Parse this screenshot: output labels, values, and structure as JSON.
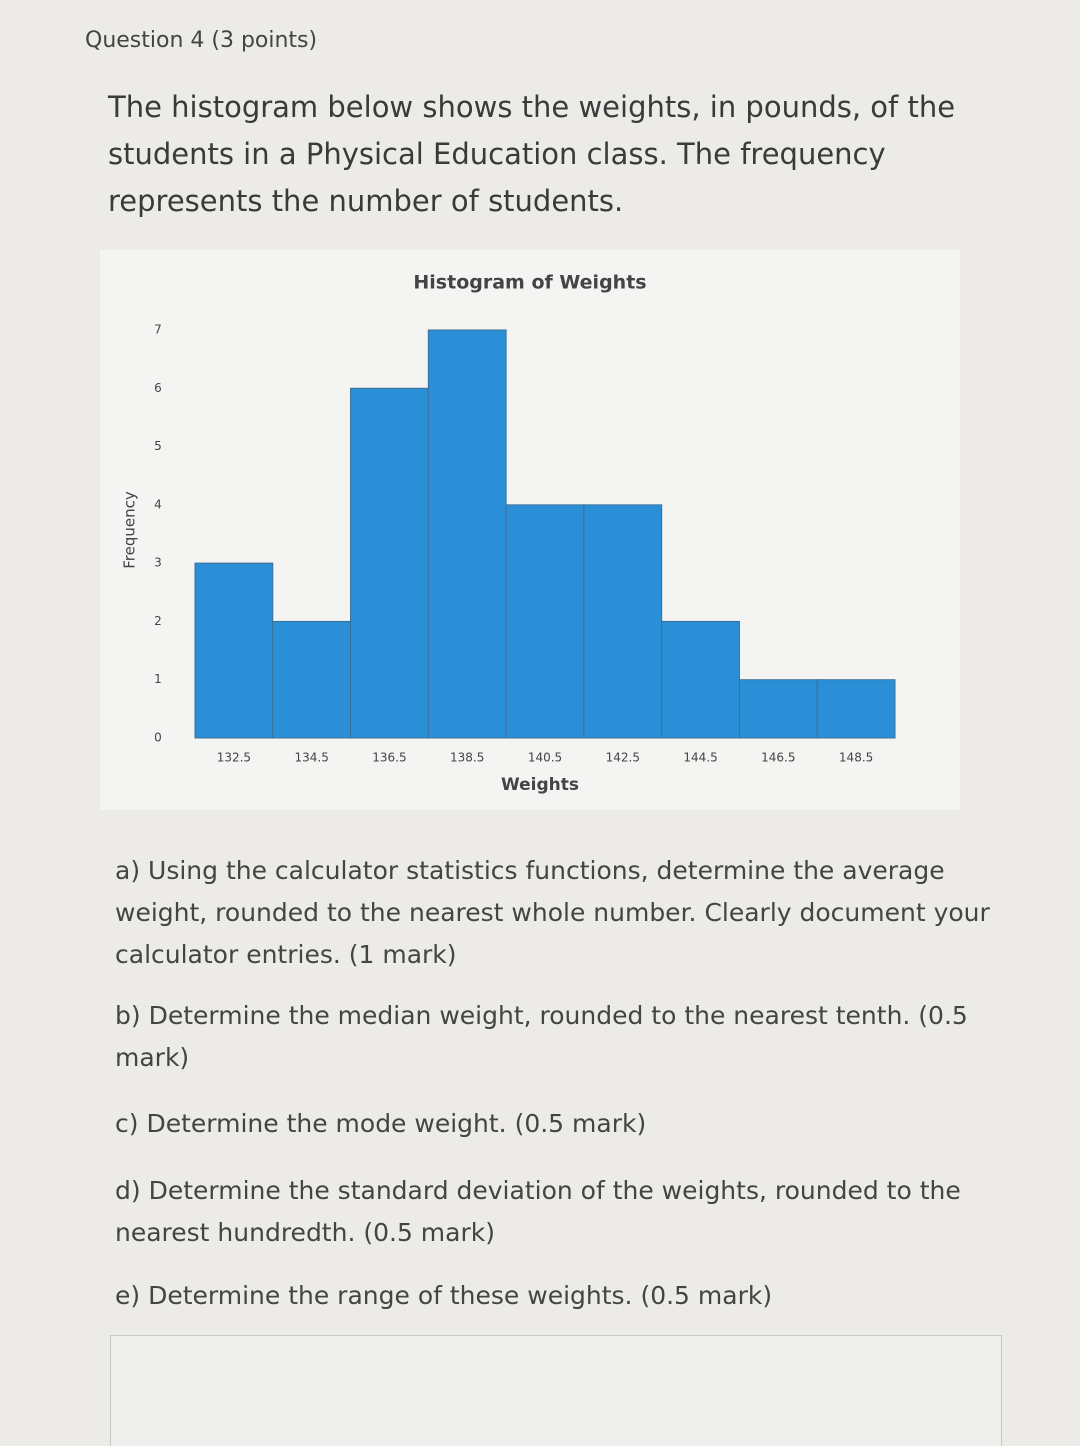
{
  "header": {
    "title": "Question 4 (3 points)"
  },
  "intro": "The histogram below shows the weights, in pounds, of the students in a Physical Education class. The frequency represents the number of students.",
  "chart_data": {
    "type": "histogram",
    "title": "Histogram of Weights",
    "x_label": "Weights",
    "y_label": "Frequency",
    "bins": [
      131.5,
      133.5,
      135.5,
      137.5,
      139.5,
      141.5,
      143.5,
      145.5,
      147.5,
      149.5
    ],
    "values": [
      3,
      2,
      6,
      7,
      4,
      4,
      2,
      1,
      1
    ],
    "color": "#2b8fd8",
    "xlim": [
      131.5,
      149.5
    ],
    "xticks": [
      132.5,
      134.5,
      136.5,
      138.5,
      140.5,
      142.5,
      144.5,
      146.5,
      148.5
    ],
    "ylim": [
      0,
      7
    ],
    "yticks": [
      0,
      1,
      2,
      3,
      4,
      5,
      6,
      7
    ],
    "grid": false
  },
  "questions": [
    "a) Using the calculator statistics functions, determine the average weight, rounded to the nearest whole number. Clearly document your calculator entries. (1 mark)",
    "b) Determine the median weight, rounded to the nearest tenth. (0.5 mark)",
    "c) Determine the mode weight. (0.5 mark)",
    "d) Determine the standard deviation of the weights, rounded to the nearest hundredth. (0.5 mark)",
    "e) Determine the range of these weights. (0.5 mark)"
  ]
}
